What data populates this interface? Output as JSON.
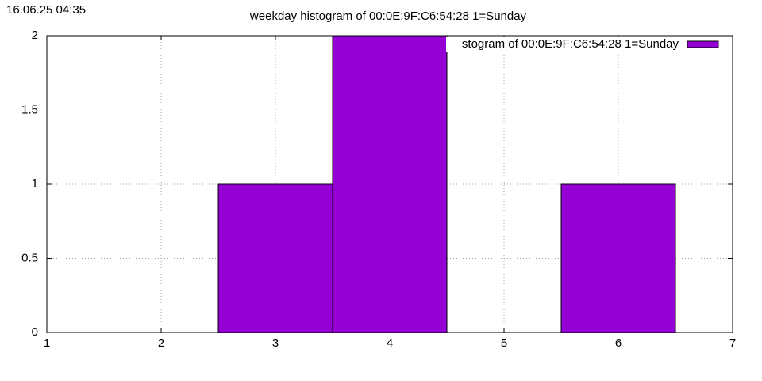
{
  "timestamp": "16.06.25 04:35",
  "chart_data": {
    "type": "histogram",
    "title": "weekday histogram of 00:0E:9F:C6:54:28 1=Sunday",
    "bins": [
      2.5,
      3.5,
      4.5,
      5.5,
      6.5
    ],
    "series": [
      {
        "name": "stogram of 00:0E:9F:C6:54:28 1=Sunday",
        "color": "#9400d3",
        "values": [
          1,
          2,
          0,
          1
        ]
      }
    ],
    "xlim": [
      1,
      7
    ],
    "xticks": [
      1,
      2,
      3,
      4,
      5,
      6,
      7
    ],
    "ylim": [
      0,
      2
    ],
    "yticks": [
      0,
      0.5,
      1,
      1.5,
      2
    ],
    "grid": true,
    "legend": "top-right"
  }
}
